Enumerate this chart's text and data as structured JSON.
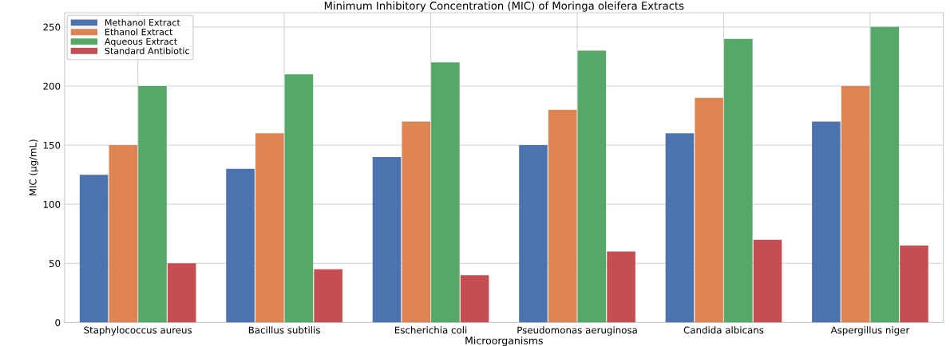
{
  "chart_data": {
    "type": "bar",
    "title": "Minimum Inhibitory Concentration (MIC) of Moringa oleifera Extracts",
    "xlabel": "Microorganisms",
    "ylabel": "MIC (µg/mL)",
    "categories": [
      "Staphylococcus aureus",
      "Bacillus subtilis",
      "Escherichia coli",
      "Pseudomonas aeruginosa",
      "Candida albicans",
      "Aspergillus niger"
    ],
    "series": [
      {
        "name": "Methanol Extract",
        "color": "#4c72b0",
        "values": [
          125,
          130,
          140,
          150,
          160,
          170
        ]
      },
      {
        "name": "Ethanol Extract",
        "color": "#dd8452",
        "values": [
          150,
          160,
          170,
          180,
          190,
          200
        ]
      },
      {
        "name": "Aqueous Extract",
        "color": "#55a868",
        "values": [
          200,
          210,
          220,
          230,
          240,
          250
        ]
      },
      {
        "name": "Standard Antibiotic",
        "color": "#c44e52",
        "values": [
          50,
          45,
          40,
          60,
          70,
          65
        ]
      }
    ],
    "ylim": [
      0,
      262
    ],
    "yticks": [
      0,
      50,
      100,
      150,
      200,
      250
    ],
    "grid": true,
    "legend": "top left"
  }
}
